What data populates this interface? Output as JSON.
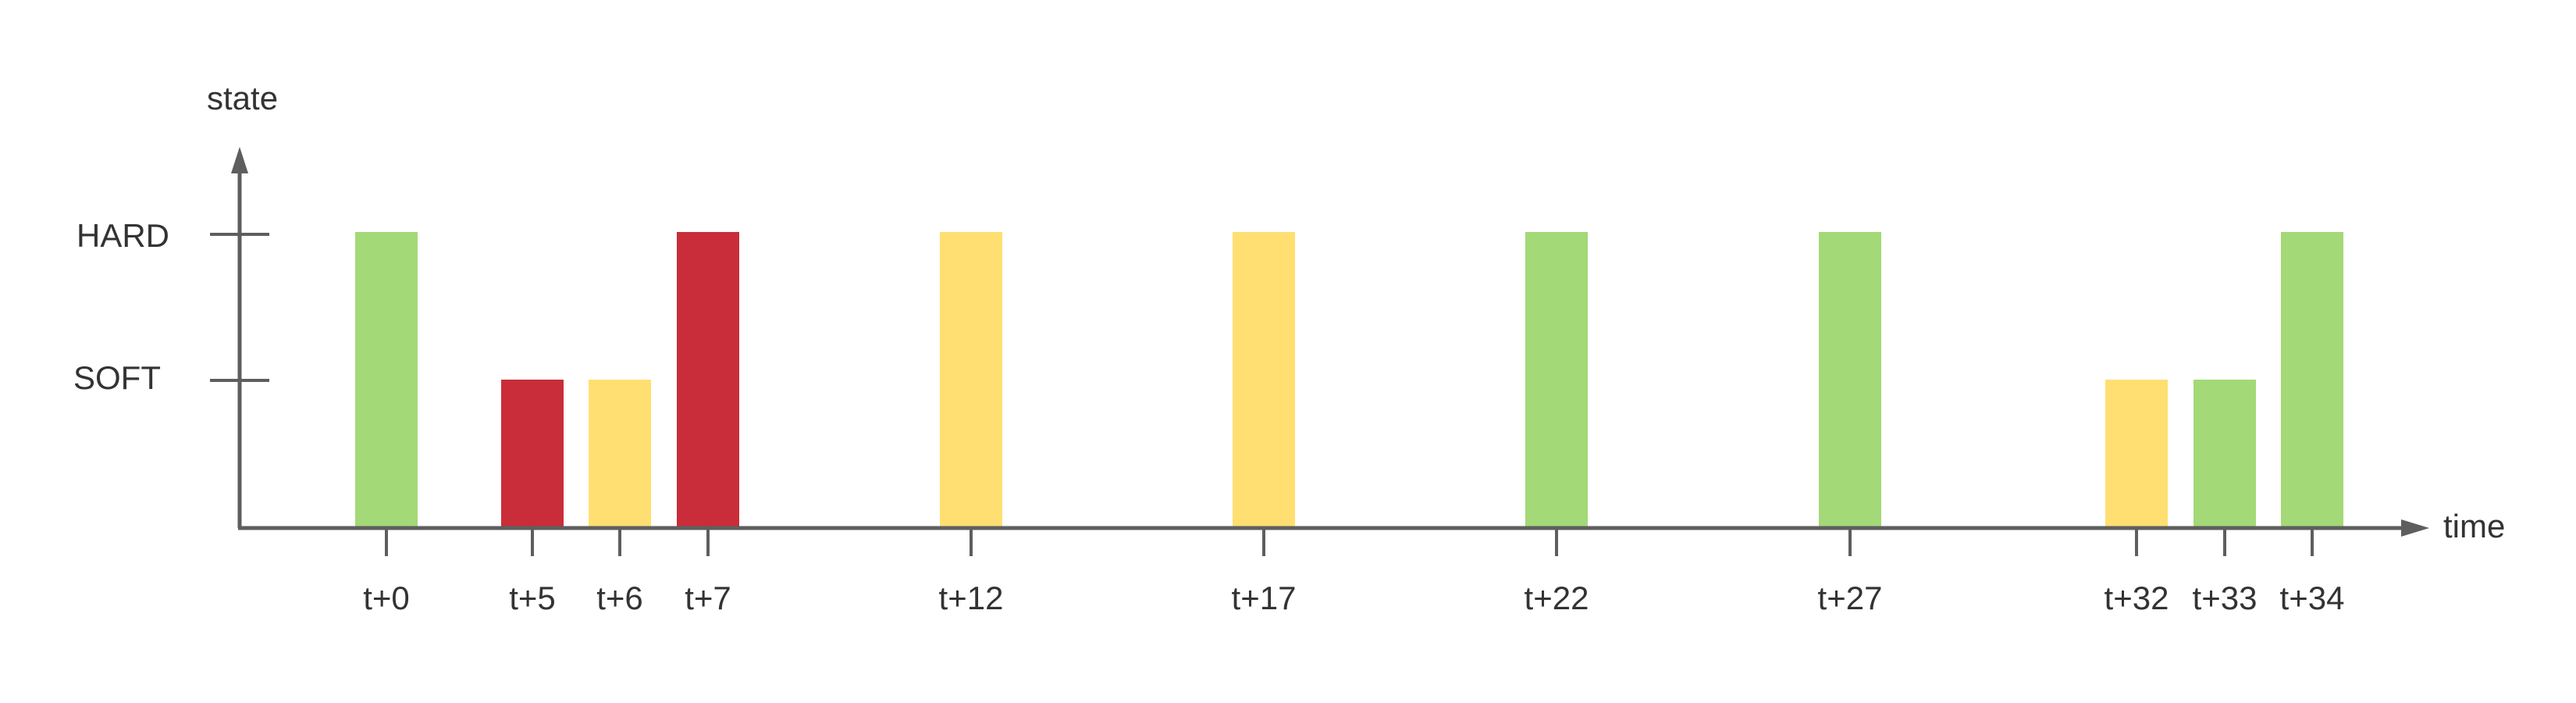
{
  "chart_data": {
    "type": "bar",
    "title": "",
    "xlabel": "time",
    "ylabel": "state",
    "y_levels": [
      "SOFT",
      "HARD"
    ],
    "categories": [
      "t+0",
      "t+5",
      "t+6",
      "t+7",
      "t+12",
      "t+17",
      "t+22",
      "t+27",
      "t+32",
      "t+33",
      "t+34"
    ],
    "values": [
      "HARD",
      "SOFT",
      "SOFT",
      "HARD",
      "HARD",
      "HARD",
      "HARD",
      "HARD",
      "SOFT",
      "SOFT",
      "HARD"
    ],
    "bar_colors": [
      "green",
      "red",
      "yellow",
      "red",
      "yellow",
      "yellow",
      "green",
      "green",
      "yellow",
      "green",
      "green"
    ],
    "grid": false,
    "legend": "none"
  },
  "colors": {
    "green": "#A3D977",
    "red": "#C92D39",
    "yellow": "#FFDF71",
    "axis": "#5E5E5E"
  }
}
